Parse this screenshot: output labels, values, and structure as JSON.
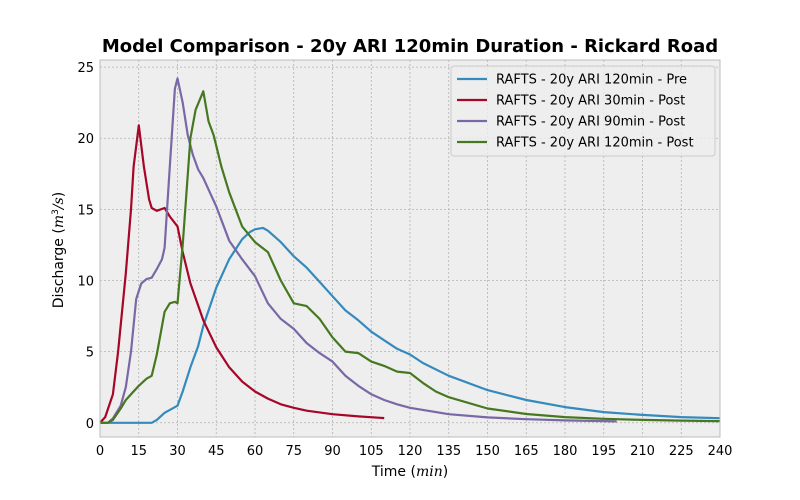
{
  "chart_data": {
    "type": "line",
    "title": "Model Comparison - 20y ARI 120min Duration - Rickard Road",
    "xlabel": "Time (min)",
    "ylabel": "Discharge (m³/s)",
    "xlim": [
      0,
      240
    ],
    "ylim": [
      -1,
      25.5
    ],
    "x_ticks": [
      0,
      15,
      30,
      45,
      60,
      75,
      90,
      105,
      120,
      135,
      150,
      165,
      180,
      195,
      210,
      225,
      240
    ],
    "y_ticks": [
      0,
      5,
      10,
      15,
      20,
      25
    ],
    "grid": true,
    "legend_position": "top-right",
    "series": [
      {
        "name": "RAFTS - 20y ARI 120min - Pre",
        "color": "#348ABD",
        "points": [
          [
            0,
            0
          ],
          [
            10,
            0
          ],
          [
            15,
            0
          ],
          [
            20,
            0
          ],
          [
            22,
            0.2
          ],
          [
            25,
            0.7
          ],
          [
            30,
            1.2
          ],
          [
            32,
            2.2
          ],
          [
            35,
            3.9
          ],
          [
            38,
            5.4
          ],
          [
            40,
            6.8
          ],
          [
            45,
            9.5
          ],
          [
            50,
            11.5
          ],
          [
            55,
            12.9
          ],
          [
            58,
            13.4
          ],
          [
            60,
            13.6
          ],
          [
            63,
            13.7
          ],
          [
            65,
            13.5
          ],
          [
            70,
            12.7
          ],
          [
            75,
            11.7
          ],
          [
            80,
            10.9
          ],
          [
            85,
            9.9
          ],
          [
            90,
            8.9
          ],
          [
            95,
            7.9
          ],
          [
            100,
            7.2
          ],
          [
            105,
            6.4
          ],
          [
            110,
            5.8
          ],
          [
            115,
            5.2
          ],
          [
            120,
            4.8
          ],
          [
            125,
            4.2
          ],
          [
            135,
            3.3
          ],
          [
            150,
            2.3
          ],
          [
            165,
            1.6
          ],
          [
            180,
            1.1
          ],
          [
            195,
            0.75
          ],
          [
            210,
            0.55
          ],
          [
            225,
            0.4
          ],
          [
            240,
            0.32
          ]
        ]
      },
      {
        "name": "RAFTS - 20y ARI 30min - Post",
        "color": "#A60628",
        "points": [
          [
            0,
            0
          ],
          [
            2,
            0.4
          ],
          [
            5,
            2
          ],
          [
            7,
            5
          ],
          [
            10,
            10.5
          ],
          [
            12,
            15
          ],
          [
            13,
            18
          ],
          [
            15,
            20.9
          ],
          [
            17,
            18
          ],
          [
            19,
            15.7
          ],
          [
            20,
            15.1
          ],
          [
            22,
            14.9
          ],
          [
            25,
            15.1
          ],
          [
            27,
            14.5
          ],
          [
            30,
            13.8
          ],
          [
            32,
            12
          ],
          [
            35,
            9.8
          ],
          [
            40,
            7.2
          ],
          [
            45,
            5.3
          ],
          [
            50,
            3.9
          ],
          [
            55,
            2.9
          ],
          [
            60,
            2.2
          ],
          [
            65,
            1.7
          ],
          [
            70,
            1.3
          ],
          [
            75,
            1.05
          ],
          [
            80,
            0.85
          ],
          [
            90,
            0.6
          ],
          [
            100,
            0.45
          ],
          [
            110,
            0.33
          ]
        ]
      },
      {
        "name": "RAFTS - 20y ARI 90min - Post",
        "color": "#7A68A6",
        "points": [
          [
            0,
            0
          ],
          [
            3,
            0
          ],
          [
            5,
            0.3
          ],
          [
            8,
            1.2
          ],
          [
            10,
            2.5
          ],
          [
            12,
            5
          ],
          [
            14,
            8.7
          ],
          [
            16,
            9.8
          ],
          [
            18,
            10.1
          ],
          [
            20,
            10.2
          ],
          [
            22,
            10.8
          ],
          [
            24,
            11.5
          ],
          [
            25,
            12.3
          ],
          [
            27,
            18
          ],
          [
            29,
            23.5
          ],
          [
            30,
            24.2
          ],
          [
            32,
            22.5
          ],
          [
            34,
            20.2
          ],
          [
            36,
            18.8
          ],
          [
            38,
            17.8
          ],
          [
            40,
            17.2
          ],
          [
            45,
            15.2
          ],
          [
            50,
            12.8
          ],
          [
            55,
            11.5
          ],
          [
            60,
            10.3
          ],
          [
            65,
            8.4
          ],
          [
            70,
            7.3
          ],
          [
            75,
            6.6
          ],
          [
            80,
            5.6
          ],
          [
            85,
            4.9
          ],
          [
            90,
            4.3
          ],
          [
            95,
            3.3
          ],
          [
            100,
            2.6
          ],
          [
            105,
            2
          ],
          [
            110,
            1.6
          ],
          [
            115,
            1.3
          ],
          [
            120,
            1.05
          ],
          [
            135,
            0.6
          ],
          [
            150,
            0.38
          ],
          [
            165,
            0.25
          ],
          [
            180,
            0.17
          ],
          [
            200,
            0.1
          ]
        ]
      },
      {
        "name": "RAFTS - 20y ARI 120min - Post",
        "color": "#467821",
        "points": [
          [
            0,
            0
          ],
          [
            3,
            0
          ],
          [
            5,
            0.2
          ],
          [
            8,
            1
          ],
          [
            10,
            1.6
          ],
          [
            15,
            2.6
          ],
          [
            18,
            3.1
          ],
          [
            20,
            3.3
          ],
          [
            22,
            4.8
          ],
          [
            25,
            7.8
          ],
          [
            27,
            8.4
          ],
          [
            29,
            8.5
          ],
          [
            30,
            8.4
          ],
          [
            32,
            12.5
          ],
          [
            35,
            20
          ],
          [
            37,
            22
          ],
          [
            40,
            23.3
          ],
          [
            42,
            21.2
          ],
          [
            44,
            20.2
          ],
          [
            47,
            18
          ],
          [
            50,
            16.2
          ],
          [
            55,
            13.8
          ],
          [
            60,
            12.7
          ],
          [
            65,
            12
          ],
          [
            70,
            10
          ],
          [
            75,
            8.4
          ],
          [
            80,
            8.2
          ],
          [
            85,
            7.3
          ],
          [
            90,
            6
          ],
          [
            95,
            5
          ],
          [
            100,
            4.9
          ],
          [
            105,
            4.3
          ],
          [
            110,
            4
          ],
          [
            115,
            3.6
          ],
          [
            120,
            3.5
          ],
          [
            125,
            2.8
          ],
          [
            130,
            2.2
          ],
          [
            135,
            1.8
          ],
          [
            150,
            1
          ],
          [
            165,
            0.62
          ],
          [
            180,
            0.4
          ],
          [
            195,
            0.28
          ],
          [
            210,
            0.2
          ],
          [
            225,
            0.15
          ],
          [
            240,
            0.12
          ]
        ]
      }
    ]
  }
}
